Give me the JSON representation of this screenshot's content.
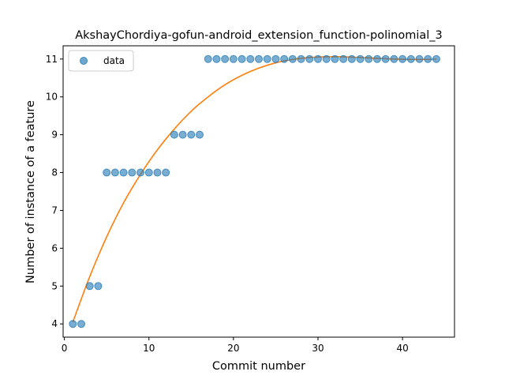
{
  "chart_data": {
    "type": "scatter",
    "title": "AkshayChordiya-gofun-android_extension_function-polinomial_3",
    "xlabel": "Commit number",
    "ylabel": "Number of instance of a feature",
    "xlim": [
      -0.15,
      46.15
    ],
    "ylim": [
      3.65,
      11.35
    ],
    "xticks": [
      0,
      10,
      20,
      30,
      40
    ],
    "yticks": [
      4,
      5,
      6,
      7,
      8,
      9,
      10,
      11
    ],
    "grid": false,
    "legend_position": "top-left",
    "series": [
      {
        "name": "data",
        "kind": "points",
        "color": "#1f77b4",
        "x": [
          1,
          2,
          3,
          4,
          5,
          6,
          7,
          8,
          9,
          10,
          11,
          12,
          13,
          14,
          15,
          16,
          17,
          18,
          19,
          20,
          21,
          22,
          23,
          24,
          25,
          26,
          27,
          28,
          29,
          30,
          31,
          32,
          33,
          34,
          35,
          36,
          37,
          38,
          39,
          40,
          41,
          42,
          43,
          44
        ],
        "y": [
          4,
          4,
          5,
          5,
          8,
          8,
          8,
          8,
          8,
          8,
          8,
          8,
          9,
          9,
          9,
          9,
          11,
          11,
          11,
          11,
          11,
          11,
          11,
          11,
          11,
          11,
          11,
          11,
          11,
          11,
          11,
          11,
          11,
          11,
          11,
          11,
          11,
          11,
          11,
          11,
          11,
          11,
          11,
          11
        ]
      },
      {
        "kind": "fit-curve",
        "color": "#ff7f0e",
        "x": [
          1,
          3,
          5,
          7,
          9,
          11,
          13,
          15,
          17,
          19,
          21,
          23,
          25,
          27,
          29,
          31,
          33,
          35,
          37,
          39,
          41,
          43,
          44
        ],
        "y": [
          4.05,
          5.25,
          6.3,
          7.2,
          7.95,
          8.6,
          9.15,
          9.62,
          10.0,
          10.32,
          10.57,
          10.76,
          10.9,
          10.99,
          11.04,
          11.06,
          11.06,
          11.04,
          11.02,
          11.0,
          10.99,
          10.99,
          11.0
        ]
      }
    ]
  }
}
